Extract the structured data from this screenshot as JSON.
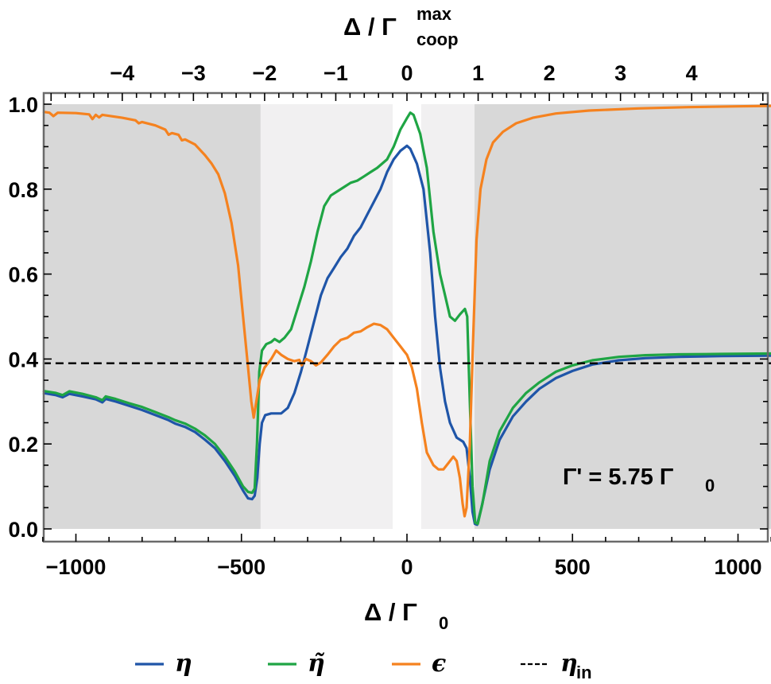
{
  "chart_data": {
    "type": "line",
    "title": "",
    "xlabel": "Δ / Γ0",
    "xlabel_parts": {
      "main": "Δ / Γ",
      "sub": "0"
    },
    "x2label": "Δ / Γ_coop^max",
    "x2label_parts": {
      "main": "Δ / Γ",
      "sup": "max",
      "sub": "coop"
    },
    "ylabel": "",
    "xlim": [
      -1100,
      1100
    ],
    "ylim": [
      0.0,
      1.0
    ],
    "x_ticks": [
      -1000,
      -500,
      0,
      500,
      1000
    ],
    "x_tick_labels": [
      "−1000",
      "−500",
      "0",
      "500",
      "1000"
    ],
    "x2_ticks": [
      -4,
      -3,
      -2,
      -1,
      0,
      1,
      2,
      3,
      4
    ],
    "x2_tick_labels": [
      "−4",
      "−3",
      "−2",
      "−1",
      "0",
      "1",
      "2",
      "3",
      "4"
    ],
    "x2_scale_per_unit": 215,
    "y_ticks": [
      0.0,
      0.2,
      0.4,
      0.6,
      0.8,
      1.0
    ],
    "y_tick_labels": [
      "0.0",
      "0.2",
      "0.4",
      "0.6",
      "0.8",
      "1.0"
    ],
    "grid": false,
    "annotation": {
      "main": "Γ' = 5.75 Γ",
      "sub": "0",
      "text": "Γ' = 5.75 Γ0"
    },
    "shaded_regions": [
      {
        "x0": -1100,
        "x1": -442,
        "shade": "dark"
      },
      {
        "x0": -442,
        "x1": -43,
        "shade": "light"
      },
      {
        "x0": 43,
        "x1": 204,
        "shade": "light"
      },
      {
        "x0": 204,
        "x1": 1100,
        "shade": "dark"
      }
    ],
    "series": [
      {
        "name": "η",
        "color": "#1f55a8",
        "dash": false,
        "points": [
          [
            -1100,
            0.32
          ],
          [
            -1060,
            0.315
          ],
          [
            -1040,
            0.31
          ],
          [
            -1020,
            0.318
          ],
          [
            -980,
            0.312
          ],
          [
            -940,
            0.305
          ],
          [
            -920,
            0.298
          ],
          [
            -910,
            0.306
          ],
          [
            -880,
            0.3
          ],
          [
            -840,
            0.29
          ],
          [
            -800,
            0.28
          ],
          [
            -760,
            0.268
          ],
          [
            -720,
            0.256
          ],
          [
            -700,
            0.248
          ],
          [
            -670,
            0.24
          ],
          [
            -640,
            0.228
          ],
          [
            -610,
            0.21
          ],
          [
            -580,
            0.19
          ],
          [
            -550,
            0.16
          ],
          [
            -520,
            0.125
          ],
          [
            -495,
            0.09
          ],
          [
            -480,
            0.072
          ],
          [
            -468,
            0.07
          ],
          [
            -460,
            0.078
          ],
          [
            -452,
            0.12
          ],
          [
            -445,
            0.2
          ],
          [
            -438,
            0.25
          ],
          [
            -428,
            0.268
          ],
          [
            -410,
            0.272
          ],
          [
            -380,
            0.272
          ],
          [
            -360,
            0.285
          ],
          [
            -340,
            0.32
          ],
          [
            -320,
            0.37
          ],
          [
            -300,
            0.43
          ],
          [
            -280,
            0.49
          ],
          [
            -260,
            0.55
          ],
          [
            -240,
            0.59
          ],
          [
            -220,
            0.615
          ],
          [
            -200,
            0.64
          ],
          [
            -180,
            0.66
          ],
          [
            -160,
            0.69
          ],
          [
            -140,
            0.71
          ],
          [
            -120,
            0.74
          ],
          [
            -100,
            0.77
          ],
          [
            -80,
            0.8
          ],
          [
            -60,
            0.84
          ],
          [
            -40,
            0.87
          ],
          [
            -20,
            0.89
          ],
          [
            0,
            0.902
          ],
          [
            10,
            0.895
          ],
          [
            30,
            0.86
          ],
          [
            50,
            0.8
          ],
          [
            70,
            0.65
          ],
          [
            85,
            0.5
          ],
          [
            100,
            0.38
          ],
          [
            115,
            0.3
          ],
          [
            130,
            0.25
          ],
          [
            150,
            0.215
          ],
          [
            170,
            0.205
          ],
          [
            180,
            0.19
          ],
          [
            190,
            0.12
          ],
          [
            198,
            0.04
          ],
          [
            205,
            0.012
          ],
          [
            212,
            0.01
          ],
          [
            225,
            0.05
          ],
          [
            250,
            0.14
          ],
          [
            280,
            0.21
          ],
          [
            320,
            0.265
          ],
          [
            360,
            0.3
          ],
          [
            400,
            0.33
          ],
          [
            450,
            0.355
          ],
          [
            500,
            0.372
          ],
          [
            560,
            0.387
          ],
          [
            640,
            0.397
          ],
          [
            720,
            0.402
          ],
          [
            820,
            0.405
          ],
          [
            950,
            0.407
          ],
          [
            1100,
            0.408
          ]
        ]
      },
      {
        "name": "η̃",
        "color": "#1fa544",
        "dash": false,
        "points": [
          [
            -1100,
            0.325
          ],
          [
            -1060,
            0.32
          ],
          [
            -1040,
            0.315
          ],
          [
            -1020,
            0.324
          ],
          [
            -980,
            0.318
          ],
          [
            -940,
            0.31
          ],
          [
            -920,
            0.303
          ],
          [
            -910,
            0.312
          ],
          [
            -880,
            0.306
          ],
          [
            -840,
            0.296
          ],
          [
            -800,
            0.287
          ],
          [
            -760,
            0.275
          ],
          [
            -720,
            0.263
          ],
          [
            -700,
            0.256
          ],
          [
            -670,
            0.248
          ],
          [
            -640,
            0.236
          ],
          [
            -610,
            0.22
          ],
          [
            -580,
            0.2
          ],
          [
            -550,
            0.17
          ],
          [
            -520,
            0.135
          ],
          [
            -495,
            0.1
          ],
          [
            -480,
            0.087
          ],
          [
            -468,
            0.085
          ],
          [
            -460,
            0.095
          ],
          [
            -453,
            0.2
          ],
          [
            -446,
            0.37
          ],
          [
            -438,
            0.42
          ],
          [
            -425,
            0.435
          ],
          [
            -410,
            0.44
          ],
          [
            -400,
            0.447
          ],
          [
            -385,
            0.44
          ],
          [
            -370,
            0.45
          ],
          [
            -350,
            0.47
          ],
          [
            -330,
            0.52
          ],
          [
            -310,
            0.57
          ],
          [
            -290,
            0.63
          ],
          [
            -270,
            0.7
          ],
          [
            -250,
            0.76
          ],
          [
            -230,
            0.785
          ],
          [
            -210,
            0.795
          ],
          [
            -190,
            0.805
          ],
          [
            -170,
            0.815
          ],
          [
            -150,
            0.82
          ],
          [
            -130,
            0.83
          ],
          [
            -110,
            0.84
          ],
          [
            -90,
            0.85
          ],
          [
            -60,
            0.87
          ],
          [
            -40,
            0.9
          ],
          [
            -20,
            0.94
          ],
          [
            0,
            0.967
          ],
          [
            10,
            0.98
          ],
          [
            20,
            0.975
          ],
          [
            40,
            0.93
          ],
          [
            60,
            0.85
          ],
          [
            80,
            0.7
          ],
          [
            100,
            0.6
          ],
          [
            115,
            0.55
          ],
          [
            130,
            0.5
          ],
          [
            145,
            0.49
          ],
          [
            160,
            0.505
          ],
          [
            175,
            0.518
          ],
          [
            182,
            0.5
          ],
          [
            190,
            0.3
          ],
          [
            198,
            0.1
          ],
          [
            206,
            0.015
          ],
          [
            214,
            0.012
          ],
          [
            228,
            0.06
          ],
          [
            250,
            0.16
          ],
          [
            280,
            0.23
          ],
          [
            320,
            0.285
          ],
          [
            360,
            0.32
          ],
          [
            400,
            0.345
          ],
          [
            450,
            0.37
          ],
          [
            500,
            0.385
          ],
          [
            560,
            0.397
          ],
          [
            640,
            0.405
          ],
          [
            720,
            0.409
          ],
          [
            820,
            0.411
          ],
          [
            950,
            0.412
          ],
          [
            1100,
            0.413
          ]
        ]
      },
      {
        "name": "ε",
        "color": "#f5821f",
        "dash": false,
        "points": [
          [
            -1100,
            0.982
          ],
          [
            -1080,
            0.98
          ],
          [
            -1068,
            0.972
          ],
          [
            -1055,
            0.98
          ],
          [
            -1000,
            0.979
          ],
          [
            -960,
            0.976
          ],
          [
            -950,
            0.965
          ],
          [
            -940,
            0.975
          ],
          [
            -930,
            0.969
          ],
          [
            -920,
            0.975
          ],
          [
            -860,
            0.968
          ],
          [
            -820,
            0.962
          ],
          [
            -810,
            0.955
          ],
          [
            -800,
            0.958
          ],
          [
            -760,
            0.95
          ],
          [
            -730,
            0.94
          ],
          [
            -720,
            0.928
          ],
          [
            -710,
            0.932
          ],
          [
            -690,
            0.928
          ],
          [
            -680,
            0.915
          ],
          [
            -670,
            0.917
          ],
          [
            -640,
            0.905
          ],
          [
            -610,
            0.88
          ],
          [
            -590,
            0.86
          ],
          [
            -570,
            0.835
          ],
          [
            -550,
            0.79
          ],
          [
            -530,
            0.72
          ],
          [
            -510,
            0.62
          ],
          [
            -495,
            0.5
          ],
          [
            -480,
            0.38
          ],
          [
            -470,
            0.3
          ],
          [
            -463,
            0.262
          ],
          [
            -455,
            0.3
          ],
          [
            -445,
            0.35
          ],
          [
            -430,
            0.38
          ],
          [
            -410,
            0.4
          ],
          [
            -395,
            0.42
          ],
          [
            -380,
            0.41
          ],
          [
            -360,
            0.4
          ],
          [
            -340,
            0.395
          ],
          [
            -325,
            0.398
          ],
          [
            -318,
            0.385
          ],
          [
            -305,
            0.4
          ],
          [
            -290,
            0.395
          ],
          [
            -275,
            0.385
          ],
          [
            -260,
            0.392
          ],
          [
            -240,
            0.41
          ],
          [
            -220,
            0.43
          ],
          [
            -200,
            0.445
          ],
          [
            -180,
            0.45
          ],
          [
            -160,
            0.462
          ],
          [
            -140,
            0.465
          ],
          [
            -120,
            0.475
          ],
          [
            -100,
            0.483
          ],
          [
            -80,
            0.48
          ],
          [
            -60,
            0.47
          ],
          [
            -40,
            0.45
          ],
          [
            -20,
            0.43
          ],
          [
            0,
            0.41
          ],
          [
            15,
            0.38
          ],
          [
            30,
            0.33
          ],
          [
            45,
            0.25
          ],
          [
            60,
            0.18
          ],
          [
            80,
            0.15
          ],
          [
            95,
            0.14
          ],
          [
            110,
            0.14
          ],
          [
            125,
            0.155
          ],
          [
            140,
            0.17
          ],
          [
            150,
            0.16
          ],
          [
            160,
            0.12
          ],
          [
            168,
            0.06
          ],
          [
            174,
            0.03
          ],
          [
            180,
            0.05
          ],
          [
            190,
            0.2
          ],
          [
            200,
            0.45
          ],
          [
            210,
            0.68
          ],
          [
            222,
            0.8
          ],
          [
            240,
            0.87
          ],
          [
            260,
            0.91
          ],
          [
            290,
            0.935
          ],
          [
            330,
            0.955
          ],
          [
            380,
            0.968
          ],
          [
            450,
            0.978
          ],
          [
            550,
            0.985
          ],
          [
            700,
            0.99
          ],
          [
            850,
            0.993
          ],
          [
            1000,
            0.995
          ],
          [
            1100,
            0.996
          ]
        ]
      },
      {
        "name": "η_in",
        "color": "#000000",
        "dash": true,
        "points": [
          [
            -1100,
            0.39
          ],
          [
            1100,
            0.39
          ]
        ]
      }
    ]
  },
  "legend": {
    "items": [
      {
        "label": "η",
        "sub": "",
        "color": "#1f55a8",
        "dash": false
      },
      {
        "label": "η̃",
        "sub": "",
        "color": "#1fa544",
        "dash": false
      },
      {
        "label": "ϵ",
        "sub": "",
        "color": "#f5821f",
        "dash": false
      },
      {
        "label": "η",
        "sub": "in",
        "color": "#000000",
        "dash": true
      }
    ]
  },
  "colors": {
    "shade_dark": "#d8d8d8",
    "shade_light": "#f1f0f1",
    "frame": "#6b6b6b"
  }
}
